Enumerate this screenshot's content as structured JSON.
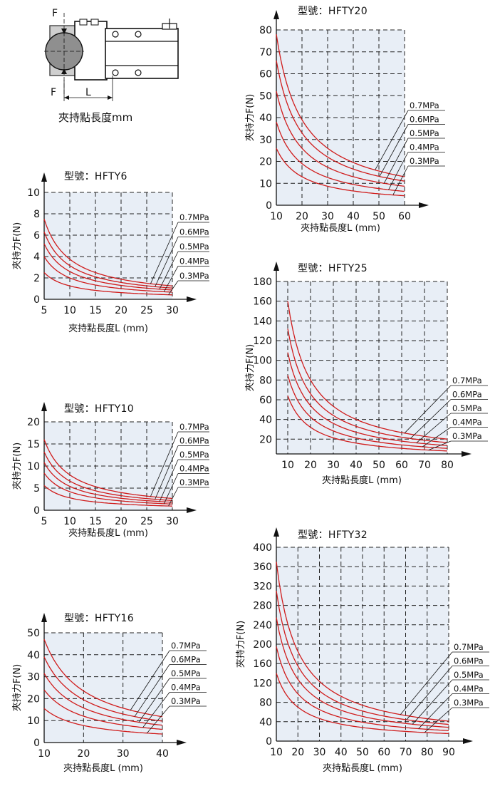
{
  "diagram": {
    "caption": "夾持點長度mm",
    "label_f_top": "F",
    "label_f_bottom": "F",
    "label_l": "L"
  },
  "chart_data": [
    {
      "type": "line",
      "model": "型號：HFTY6",
      "xlabel": "夾持點長度L (mm)",
      "ylabel": "夾持力F(N)",
      "x_ticks": [
        5,
        10,
        15,
        20,
        25,
        30
      ],
      "y_ticks": [
        0,
        2,
        4,
        6,
        8,
        10
      ],
      "xlim": [
        5,
        30
      ],
      "ylim": [
        0,
        10
      ],
      "series": [
        {
          "name": "0.7MPa",
          "k": 37.5
        },
        {
          "name": "0.6MPa",
          "k": 31.5
        },
        {
          "name": "0.5MPa",
          "k": 26
        },
        {
          "name": "0.4MPa",
          "k": 20
        },
        {
          "name": "0.3MPa",
          "k": 12.5
        }
      ]
    },
    {
      "type": "line",
      "model": "型號：HFTY10",
      "xlabel": "夾持點長度L (mm)",
      "ylabel": "夾持力F(N)",
      "x_ticks": [
        5,
        10,
        15,
        20,
        25,
        30
      ],
      "y_ticks": [
        0,
        5,
        10,
        15,
        20
      ],
      "xlim": [
        5,
        30
      ],
      "ylim": [
        0,
        20
      ],
      "series": [
        {
          "name": "0.7MPa",
          "k": 80
        },
        {
          "name": "0.6MPa",
          "k": 66
        },
        {
          "name": "0.5MPa",
          "k": 54
        },
        {
          "name": "0.4MPa",
          "k": 42
        },
        {
          "name": "0.3MPa",
          "k": 28
        }
      ]
    },
    {
      "type": "line",
      "model": "型號：HFTY16",
      "xlabel": "夾持點長度L (mm)",
      "ylabel": "夾持力F(N)",
      "x_ticks": [
        10,
        20,
        30,
        40
      ],
      "y_ticks": [
        0,
        10,
        20,
        30,
        40,
        50
      ],
      "xlim": [
        10,
        40
      ],
      "ylim": [
        0,
        50
      ],
      "series": [
        {
          "name": "0.7MPa",
          "k": 470
        },
        {
          "name": "0.6MPa",
          "k": 390
        },
        {
          "name": "0.5MPa",
          "k": 315
        },
        {
          "name": "0.4MPa",
          "k": 240
        },
        {
          "name": "0.3MPa",
          "k": 155
        }
      ]
    },
    {
      "type": "line",
      "model": "型號：HFTY20",
      "xlabel": "夾持點長度L (mm)",
      "ylabel": "夾持力F(N)",
      "x_ticks": [
        10,
        20,
        30,
        40,
        50,
        60
      ],
      "y_ticks": [
        0,
        10,
        20,
        30,
        40,
        50,
        60,
        70,
        80
      ],
      "xlim": [
        10,
        60
      ],
      "ylim": [
        0,
        80
      ],
      "series": [
        {
          "name": "0.7MPa",
          "k": 780
        },
        {
          "name": "0.6MPa",
          "k": 660
        },
        {
          "name": "0.5MPa",
          "k": 520
        },
        {
          "name": "0.4MPa",
          "k": 380
        },
        {
          "name": "0.3MPa",
          "k": 260
        }
      ]
    },
    {
      "type": "line",
      "model": "型號：HFTY25",
      "xlabel": "夾持點長度L (mm)",
      "ylabel": "夾持力F(N)",
      "x_ticks": [
        10,
        20,
        30,
        40,
        50,
        60,
        70,
        80
      ],
      "y_ticks": [
        20,
        40,
        60,
        80,
        100,
        120,
        140,
        160,
        180
      ],
      "xlim": [
        5,
        80
      ],
      "ylim": [
        5,
        180
      ],
      "series": [
        {
          "name": "0.7MPa",
          "k": 1600
        },
        {
          "name": "0.6MPa",
          "k": 1320
        },
        {
          "name": "0.5MPa",
          "k": 1080
        },
        {
          "name": "0.4MPa",
          "k": 850
        },
        {
          "name": "0.3MPa",
          "k": 640
        }
      ]
    },
    {
      "type": "line",
      "model": "型號：HFTY32",
      "xlabel": "夾持點長度L (mm)",
      "ylabel": "夾持力F(N)",
      "x_ticks": [
        10,
        20,
        30,
        40,
        50,
        60,
        70,
        80,
        90
      ],
      "y_ticks": [
        0,
        40,
        80,
        120,
        160,
        200,
        240,
        280,
        320,
        360,
        400
      ],
      "xlim": [
        10,
        90
      ],
      "ylim": [
        0,
        400
      ],
      "series": [
        {
          "name": "0.7MPa",
          "k": 3700
        },
        {
          "name": "0.6MPa",
          "k": 3100
        },
        {
          "name": "0.5MPa",
          "k": 2550
        },
        {
          "name": "0.4MPa",
          "k": 1950
        },
        {
          "name": "0.3MPa",
          "k": 1400
        }
      ]
    }
  ]
}
